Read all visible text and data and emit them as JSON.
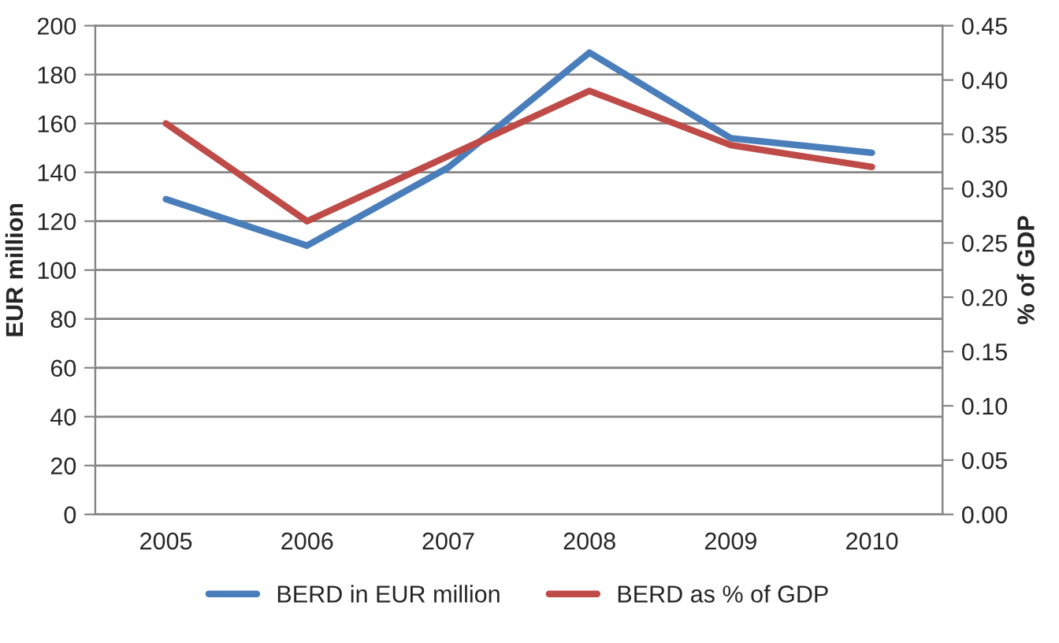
{
  "chart_data": {
    "type": "line",
    "categories": [
      "2005",
      "2006",
      "2007",
      "2008",
      "2009",
      "2010"
    ],
    "ylabel": "EUR million",
    "y2label": "% of GDP",
    "ylim": [
      0,
      200
    ],
    "yticks": [
      0,
      20,
      40,
      60,
      80,
      100,
      120,
      140,
      160,
      180,
      200
    ],
    "y2lim": [
      0,
      0.45
    ],
    "y2ticks": [
      {
        "value": 0,
        "label": "0.00"
      },
      {
        "value": 0.05,
        "label": "0.05"
      },
      {
        "value": 0.1,
        "label": "0.10"
      },
      {
        "value": 0.15,
        "label": "0.15"
      },
      {
        "value": 0.2,
        "label": "0.20"
      },
      {
        "value": 0.25,
        "label": "0.25"
      },
      {
        "value": 0.3,
        "label": "0.30"
      },
      {
        "value": 0.35,
        "label": "0.35"
      },
      {
        "value": 0.4,
        "label": "0.40"
      },
      {
        "value": 0.45,
        "label": "0.45"
      }
    ],
    "grid": "y",
    "legend": "bottom",
    "series": [
      {
        "name": "BERD in EUR million",
        "color": "#4a7ebb",
        "values": [
          129,
          110,
          142,
          189,
          154,
          148
        ]
      },
      {
        "name": "BERD as % of GDP",
        "color": "#be4b48",
        "axis": "y2",
        "values": [
          0.36,
          0.27,
          0.33,
          0.39,
          0.34,
          0.32
        ]
      }
    ]
  }
}
